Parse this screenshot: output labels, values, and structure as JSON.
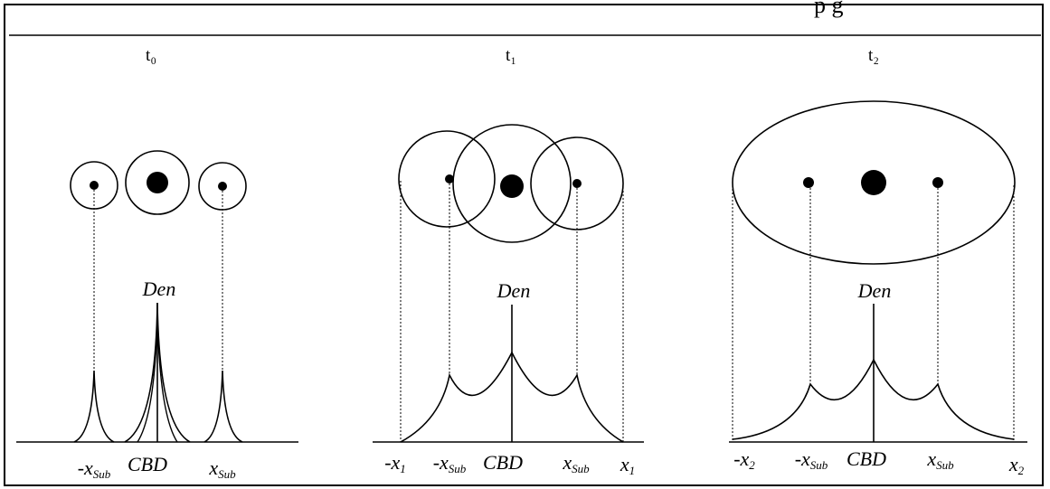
{
  "header": {
    "cropped_title": "p g"
  },
  "panels": [
    {
      "time_label": "t₀",
      "density_label": "Den",
      "axis_labels": {
        "left_sub": "-x",
        "sub_suffix": "Sub",
        "center": "CBD",
        "right_sub": "x"
      }
    },
    {
      "time_label": "t₁",
      "density_label": "Den",
      "axis_labels": {
        "outer_left": "-x",
        "outer_left_suffix": "1",
        "left_sub": "-x",
        "sub_suffix": "Sub",
        "center": "CBD",
        "right_sub": "x",
        "outer_right": "x",
        "outer_right_suffix": "1"
      }
    },
    {
      "time_label": "t₂",
      "density_label": "Den",
      "axis_labels": {
        "outer_left": "-x",
        "outer_left_suffix": "2",
        "left_sub": "-x",
        "sub_suffix": "Sub",
        "center": "CBD",
        "right_sub": "x",
        "outer_right": "x",
        "outer_right_suffix": "2"
      }
    }
  ],
  "colors": {
    "ink": "#000000",
    "background": "#ffffff"
  }
}
